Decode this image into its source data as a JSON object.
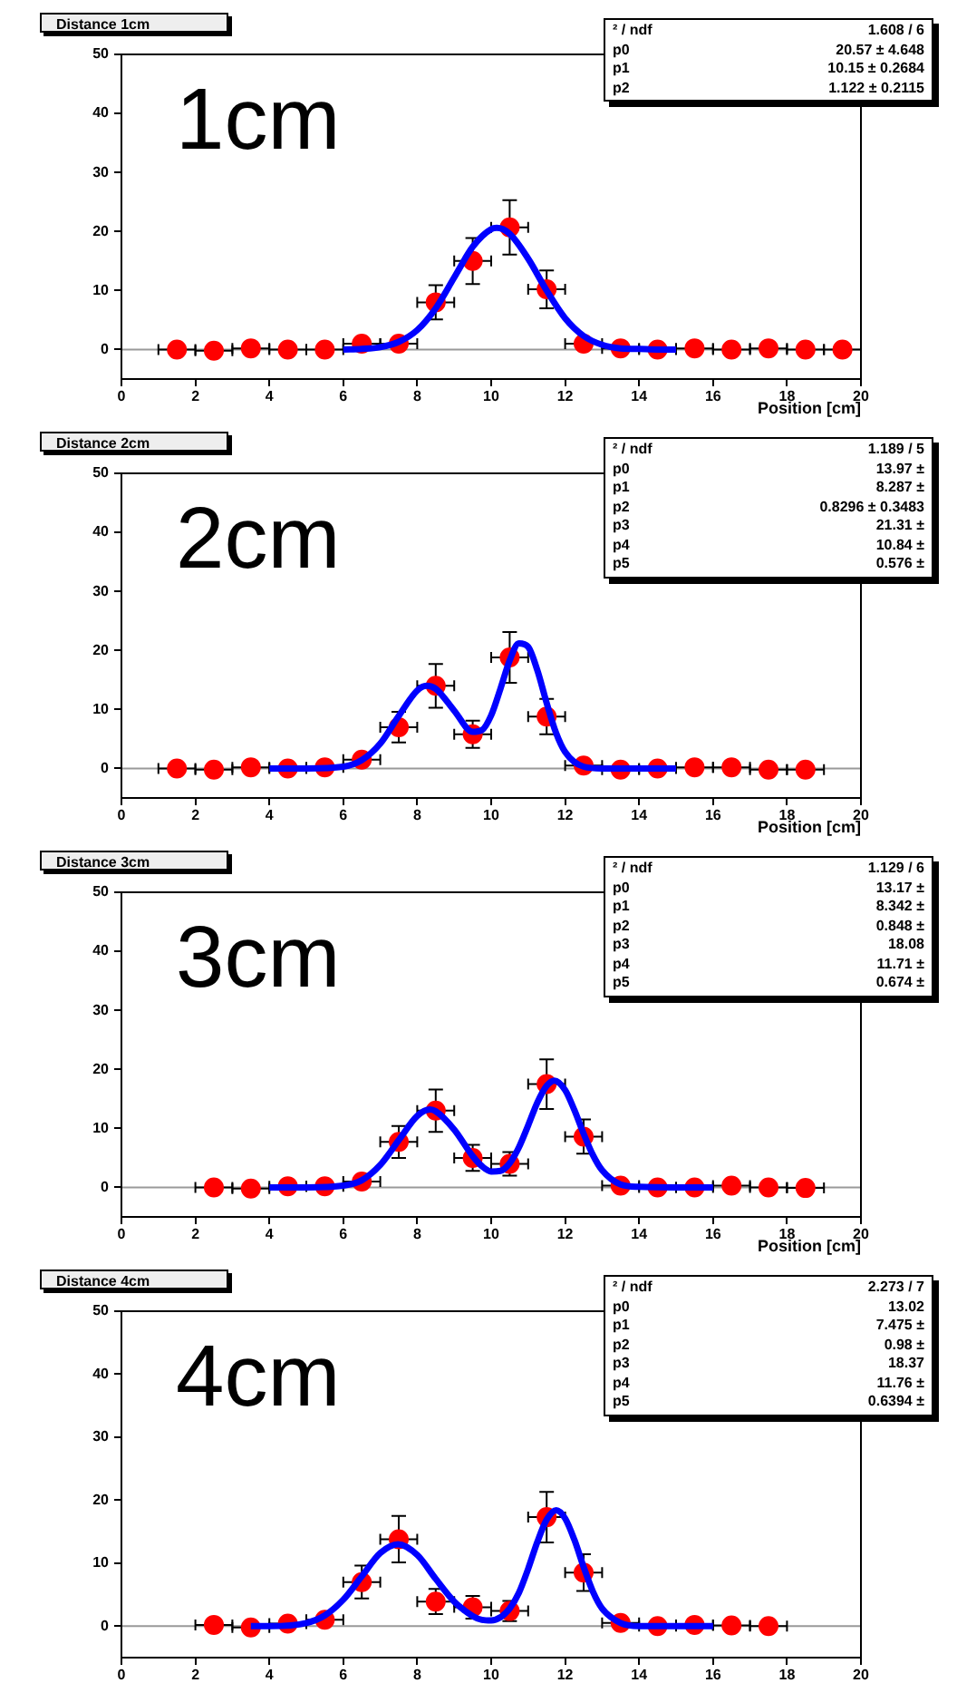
{
  "chart_data": [
    {
      "type": "scatter",
      "title": "Distance 1cm",
      "xlabel": "Position [cm]",
      "annotations": [
        "1cm",
        "² / ndf\t1.608 / 6",
        "p0\t20.57 ± 4.648",
        "p1\t10.15 ± 0.2684",
        "p2\t1.122 ± 0.2115"
      ],
      "xlim": [
        0,
        20
      ],
      "ylim": [
        -5,
        50
      ],
      "xticks": [
        0,
        2,
        4,
        6,
        8,
        10,
        12,
        14,
        16,
        18,
        20
      ],
      "yticks": [
        0,
        10,
        20,
        30,
        40,
        50
      ],
      "grid": false,
      "legend": false,
      "ref_lines": [
        {
          "axis": "y",
          "value": 0,
          "color": "#999999"
        }
      ],
      "series": [
        {
          "marker": "circle",
          "color": "#ff0000",
          "x": [
            1.5,
            2.5,
            3.5,
            4.5,
            5.5,
            6.5,
            7.5,
            8.5,
            9.5,
            10.5,
            11.5,
            12.5,
            13.5,
            14.5,
            15.5,
            16.5,
            17.5,
            18.5,
            19.5
          ],
          "values": [
            0,
            -0.2,
            0.2,
            0,
            0,
            1,
            1,
            8,
            15,
            20.7,
            10.2,
            1,
            0.2,
            0,
            0.2,
            0,
            0.2,
            0,
            0
          ],
          "errors": [
            null,
            null,
            null,
            null,
            null,
            null,
            null,
            2.9,
            3.9,
            4.6,
            3.2,
            null,
            null,
            null,
            null,
            null,
            null,
            null,
            null
          ],
          "xerrors": [
            0.5,
            0.5,
            0.5,
            0.5,
            0.5,
            0.5,
            0.5,
            0.5,
            0.5,
            0.5,
            0.5,
            0.5,
            0.5,
            0.5,
            0.5,
            0.5,
            0.5,
            0.5,
            0.5
          ]
        },
        {
          "type": "line",
          "marker": "none",
          "color": "#0000ff",
          "x": [
            6,
            6.5,
            7,
            7.5,
            8,
            8.5,
            9,
            9.5,
            10,
            10.15,
            10.5,
            11,
            11.5,
            12,
            12.5,
            13,
            13.5,
            14,
            14.5,
            15
          ],
          "values": [
            0,
            0.1,
            0.4,
            1.3,
            3.3,
            7,
            12.2,
            17.4,
            20.4,
            20.6,
            19.6,
            15.4,
            10,
            5.3,
            2.3,
            0.8,
            0.2,
            0.1,
            0,
            0
          ]
        }
      ]
    },
    {
      "type": "scatter",
      "title": "Distance 2cm",
      "xlabel": "Position [cm]",
      "annotations": [
        "2cm",
        "² / ndf\t1.189 / 5",
        "p0\t13.97 ±",
        "p1\t8.287 ±",
        "p2\t0.8296 ± 0.3483",
        "p3\t21.31 ±",
        "p4\t10.84 ±",
        "p5\t0.576 ±"
      ],
      "xlim": [
        0,
        20
      ],
      "ylim": [
        -5,
        50
      ],
      "xticks": [
        0,
        2,
        4,
        6,
        8,
        10,
        12,
        14,
        16,
        18,
        20
      ],
      "yticks": [
        0,
        10,
        20,
        30,
        40,
        50
      ],
      "grid": false,
      "legend": false,
      "ref_lines": [
        {
          "axis": "y",
          "value": 0,
          "color": "#999999"
        }
      ],
      "series": [
        {
          "marker": "circle",
          "color": "#ff0000",
          "x": [
            1.5,
            2.5,
            3.5,
            4.5,
            5.5,
            6.5,
            7.5,
            8.5,
            9.5,
            10.5,
            11.5,
            12.5,
            13.5,
            14.5,
            15.5,
            16.5,
            17.5,
            18.5
          ],
          "values": [
            0,
            -0.2,
            0.2,
            0,
            0.2,
            1.5,
            7,
            14,
            5.8,
            18.8,
            8.8,
            0.5,
            -0.2,
            0,
            0.2,
            0.2,
            -0.2,
            -0.2
          ],
          "errors": [
            null,
            null,
            null,
            null,
            null,
            null,
            2.6,
            3.7,
            2.3,
            4.3,
            3,
            null,
            null,
            null,
            null,
            null,
            null,
            null
          ],
          "xerrors": [
            0.5,
            0.5,
            0.5,
            0.5,
            0.5,
            0.5,
            0.5,
            0.5,
            0.5,
            0.5,
            0.5,
            0.5,
            0.5,
            0.5,
            0.5,
            0.5,
            0.5,
            0.5
          ]
        },
        {
          "type": "line",
          "marker": "none",
          "color": "#0000ff",
          "x": [
            4,
            5,
            6,
            6.5,
            7,
            7.5,
            8,
            8.25,
            8.5,
            9,
            9.5,
            9.75,
            10,
            10.25,
            10.5,
            10.75,
            11,
            11.25,
            11.5,
            11.75,
            12,
            12.5,
            13,
            14,
            15
          ],
          "values": [
            0,
            0,
            0.3,
            1.4,
            4.2,
            8.9,
            13.2,
            14,
            13.5,
            9.8,
            6.2,
            6.5,
            9,
            13.5,
            18.3,
            21.2,
            20.6,
            16.6,
            11.1,
            6.1,
            2.8,
            0.3,
            0,
            0,
            0
          ]
        }
      ]
    },
    {
      "type": "scatter",
      "title": "Distance 3cm",
      "xlabel": "Position [cm]",
      "annotations": [
        "3cm",
        "² / ndf\t1.129 / 6",
        "p0\t13.17 ±",
        "p1\t8.342 ±",
        "p2\t0.848 ±",
        "p3\t18.08",
        "p4\t11.71 ±",
        "p5\t0.674 ±"
      ],
      "xlim": [
        0,
        20
      ],
      "ylim": [
        -5,
        50
      ],
      "xticks": [
        0,
        2,
        4,
        6,
        8,
        10,
        12,
        14,
        16,
        18,
        20
      ],
      "yticks": [
        0,
        10,
        20,
        30,
        40,
        50
      ],
      "grid": false,
      "legend": false,
      "ref_lines": [
        {
          "axis": "y",
          "value": 0,
          "color": "#999999"
        }
      ],
      "series": [
        {
          "marker": "circle",
          "color": "#ff0000",
          "x": [
            2.5,
            3.5,
            4.5,
            5.5,
            6.5,
            7.5,
            8.5,
            9.5,
            10.5,
            11.5,
            12.5,
            13.5,
            14.5,
            15.5,
            16.5,
            17.5,
            18.5
          ],
          "values": [
            0,
            -0.2,
            0.2,
            0.2,
            1,
            7.7,
            13,
            5,
            4,
            17.5,
            8.6,
            0.3,
            0,
            0,
            0.3,
            0,
            -0.1
          ],
          "errors": [
            null,
            null,
            null,
            null,
            null,
            2.7,
            3.6,
            2.2,
            2,
            4.2,
            2.9,
            null,
            null,
            null,
            null,
            null,
            null
          ],
          "xerrors": [
            0.5,
            0.5,
            0.5,
            0.5,
            0.5,
            0.5,
            0.5,
            0.5,
            0.5,
            0.5,
            0.5,
            0.5,
            0.5,
            0.5,
            0.5,
            0.5,
            0.5
          ]
        },
        {
          "type": "line",
          "marker": "none",
          "color": "#0000ff",
          "x": [
            4,
            5,
            6,
            6.5,
            7,
            7.5,
            8,
            8.34,
            8.5,
            9,
            9.5,
            9.75,
            10,
            10.25,
            10.5,
            10.75,
            11,
            11.25,
            11.5,
            11.71,
            12,
            12.25,
            12.5,
            12.75,
            13,
            13.5,
            14,
            15,
            16
          ],
          "values": [
            0,
            0,
            0.3,
            1.2,
            3.8,
            8,
            12.1,
            13.2,
            12.9,
            9.8,
            5.3,
            3.6,
            2.7,
            2.8,
            4.1,
            6.8,
            10.5,
            14.4,
            17.2,
            18.1,
            16.5,
            13.1,
            9.1,
            5.5,
            2.9,
            0.5,
            0.1,
            0,
            0
          ]
        }
      ]
    },
    {
      "type": "scatter",
      "title": "Distance 4cm",
      "annotations": [
        "4cm",
        "² / ndf\t2.273 / 7",
        "p0\t13.02",
        "p1\t7.475 ±",
        "p2\t0.98 ±",
        "p3\t18.37",
        "p4\t11.76 ±",
        "p5\t0.6394 ±"
      ],
      "xlim": [
        0,
        20
      ],
      "ylim": [
        -5,
        50
      ],
      "xticks": [
        0,
        2,
        4,
        6,
        8,
        10,
        12,
        14,
        16,
        18,
        20
      ],
      "yticks": [
        0,
        10,
        20,
        30,
        40,
        50
      ],
      "grid": false,
      "legend": false,
      "ref_lines": [
        {
          "axis": "y",
          "value": 0,
          "color": "#999999"
        }
      ],
      "series": [
        {
          "marker": "circle",
          "color": "#ff0000",
          "x": [
            2.5,
            3.5,
            4.5,
            5.5,
            6.5,
            7.5,
            8.5,
            9.5,
            10.5,
            11.5,
            12.5,
            13.5,
            14.5,
            15.5,
            16.5,
            17.5
          ],
          "values": [
            0.2,
            -0.2,
            0.4,
            1,
            7,
            13.8,
            3.9,
            3,
            2.4,
            17.3,
            8.5,
            0.5,
            0,
            0.2,
            0.1,
            0
          ],
          "errors": [
            null,
            null,
            null,
            null,
            2.6,
            3.7,
            2,
            1.8,
            1.6,
            4,
            2.9,
            null,
            null,
            null,
            null,
            null
          ],
          "xerrors": [
            0.5,
            0.5,
            0.5,
            0.5,
            0.5,
            0.5,
            0.5,
            0.5,
            0.5,
            0.5,
            0.5,
            0.5,
            0.5,
            0.5,
            0.5,
            0.5
          ]
        },
        {
          "type": "line",
          "marker": "none",
          "color": "#0000ff",
          "x": [
            3.5,
            4,
            5,
            5.5,
            6,
            6.5,
            7,
            7.48,
            8,
            8.5,
            9,
            9.5,
            9.75,
            10,
            10.25,
            10.5,
            10.75,
            11,
            11.25,
            11.5,
            11.76,
            12,
            12.25,
            12.5,
            12.75,
            13,
            13.5,
            14,
            15,
            16
          ],
          "values": [
            0,
            0,
            0.5,
            1.7,
            4.2,
            7.9,
            11.6,
            13,
            11.3,
            7.5,
            3.9,
            1.6,
            1,
            0.9,
            1.4,
            2.8,
            5.3,
            9.1,
            13.4,
            16.9,
            18.4,
            17.1,
            13.7,
            9.4,
            5.5,
            2.8,
            0.5,
            0,
            0,
            0
          ]
        }
      ]
    }
  ]
}
